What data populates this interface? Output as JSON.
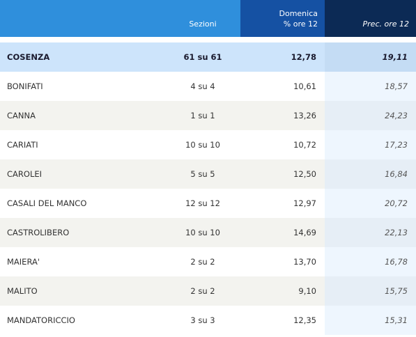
{
  "header": {
    "col_sezioni": "Sezioni",
    "col_domenica_line1": "Domenica",
    "col_domenica_line2": "% ore 12",
    "col_prec": "Prec. ore 12"
  },
  "total": {
    "name": "COSENZA",
    "sezioni": "61 su 61",
    "domenica": "12,78",
    "prec": "19,11"
  },
  "rows": [
    {
      "name": "BONIFATI",
      "sezioni": "4 su 4",
      "domenica": "10,61",
      "prec": "18,57"
    },
    {
      "name": "CANNA",
      "sezioni": "1 su 1",
      "domenica": "13,26",
      "prec": "24,23"
    },
    {
      "name": "CARIATI",
      "sezioni": "10 su 10",
      "domenica": "10,72",
      "prec": "17,23"
    },
    {
      "name": "CAROLEI",
      "sezioni": "5 su 5",
      "domenica": "12,50",
      "prec": "16,84"
    },
    {
      "name": "CASALI DEL MANCO",
      "sezioni": "12 su 12",
      "domenica": "12,97",
      "prec": "20,72"
    },
    {
      "name": "CASTROLIBERO",
      "sezioni": "10 su 10",
      "domenica": "14,69",
      "prec": "22,13"
    },
    {
      "name": "MAIERA'",
      "sezioni": "2 su 2",
      "domenica": "13,70",
      "prec": "16,78"
    },
    {
      "name": "MALITO",
      "sezioni": "2 su 2",
      "domenica": "9,10",
      "prec": "15,75"
    },
    {
      "name": "MANDATORICCIO",
      "sezioni": "3 su 3",
      "domenica": "12,35",
      "prec": "15,31"
    }
  ]
}
